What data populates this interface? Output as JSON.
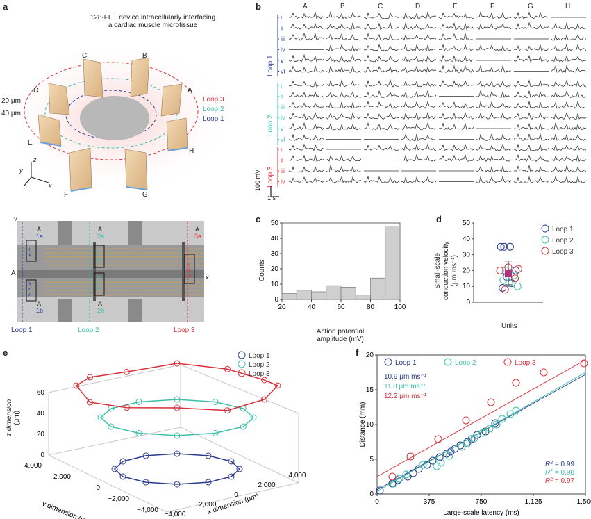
{
  "panel_a": {
    "letter": "a",
    "title_line1": "128-FET device intracellularly interfacing",
    "title_line2": "a cardiac muscle microtissue",
    "electrode_labels": [
      "A",
      "B",
      "C",
      "D",
      "E",
      "F",
      "G",
      "H"
    ],
    "dim_20": "20 μm",
    "dim_40": "40 μm",
    "loops": [
      "Loop 3",
      "Loop 2",
      "Loop 1"
    ],
    "axes": {
      "x": "x",
      "y": "y",
      "z": "z"
    },
    "colors": {
      "loop1": "#2b3a8f",
      "loop2": "#3cbfa8",
      "loop3": "#d8303a"
    }
  },
  "panel_a2": {
    "y_axis": "y",
    "x_axis": "x",
    "a_left": "A",
    "a_labels": [
      "A",
      "A",
      "A",
      "A",
      "A"
    ],
    "tags": [
      "1a",
      "2a",
      "3a",
      "1b",
      "2b"
    ],
    "roman_blue": [
      "i",
      "ii",
      "iii",
      "iv",
      "v",
      "vi"
    ],
    "roman_teal": [
      "i",
      "ii",
      "iii",
      "iv",
      "v",
      "vi"
    ],
    "roman_red": [
      "i",
      "ii",
      "iii",
      "iv"
    ],
    "loop_labels": [
      "Loop 1",
      "Loop 2",
      "Loop 3"
    ]
  },
  "panel_b": {
    "letter": "b",
    "columns": [
      "A",
      "B",
      "C",
      "D",
      "E",
      "F",
      "G",
      "H"
    ],
    "loop1_label": "Loop 1",
    "loop2_label": "Loop 2",
    "loop3_label": "Loop 3",
    "loop1_rows": [
      "i",
      "ii",
      "iii",
      "iv",
      "v",
      "vi"
    ],
    "loop2_rows": [
      "i",
      "ii",
      "iii",
      "iv",
      "v",
      "vi"
    ],
    "loop3_rows": [
      "i",
      "ii",
      "iii",
      "iv"
    ],
    "scale_v": "100 mV",
    "scale_t": "1 s"
  },
  "panel_c": {
    "letter": "c",
    "chart_data": {
      "type": "bar",
      "title": "",
      "xlabel_line1": "Action potential",
      "xlabel_line2": "amplitude (mV)",
      "ylabel": "Counts",
      "bin_edges": [
        20,
        30,
        40,
        50,
        60,
        70,
        80,
        90,
        100
      ],
      "values": [
        4,
        6,
        5,
        9,
        8,
        3,
        14,
        48
      ],
      "xticks": [
        20,
        40,
        60,
        80,
        100
      ],
      "yticks": [
        0,
        10,
        20,
        30,
        40,
        50
      ],
      "ylim": [
        0,
        50
      ],
      "xlim": [
        20,
        100
      ]
    }
  },
  "panel_d": {
    "letter": "d",
    "chart_data": {
      "type": "scatter",
      "ylabel_line1": "Small-scale",
      "ylabel_line2": "conduction velocity",
      "ylabel_line3": "(μm ms⁻¹)",
      "xlabel": "Units",
      "yticks": [
        0,
        10,
        20,
        30,
        40,
        50
      ],
      "ylim": [
        0,
        50
      ],
      "mean": 18,
      "err_low": 11,
      "err_high": 26,
      "legend": [
        {
          "name": "Loop 1",
          "color": "#2b3a8f"
        },
        {
          "name": "Loop 2",
          "color": "#3cbfa8"
        },
        {
          "name": "Loop 3",
          "color": "#d8303a"
        }
      ],
      "points": [
        {
          "series": 0,
          "x": -0.9,
          "y": 35
        },
        {
          "series": 0,
          "x": -0.5,
          "y": 35
        },
        {
          "series": 0,
          "x": 0.2,
          "y": 35
        },
        {
          "series": 0,
          "x": -0.7,
          "y": 9
        },
        {
          "series": 0,
          "x": 0.4,
          "y": 12
        },
        {
          "series": 0,
          "x": -0.2,
          "y": 16
        },
        {
          "series": 0,
          "x": 0.9,
          "y": 20
        },
        {
          "series": 1,
          "x": -0.6,
          "y": 14
        },
        {
          "series": 1,
          "x": 0.1,
          "y": 12
        },
        {
          "series": 1,
          "x": 0.7,
          "y": 17
        },
        {
          "series": 1,
          "x": 1.1,
          "y": 10
        },
        {
          "series": 1,
          "x": -0.3,
          "y": 20
        },
        {
          "series": 2,
          "x": -1.0,
          "y": 20
        },
        {
          "series": 2,
          "x": 0.0,
          "y": 22
        },
        {
          "series": 2,
          "x": 0.8,
          "y": 15
        },
        {
          "series": 2,
          "x": 1.2,
          "y": 21
        },
        {
          "series": 2,
          "x": -0.4,
          "y": 8
        }
      ]
    }
  },
  "panel_e": {
    "letter": "e",
    "z_label": "z dimension",
    "z_unit": "(μm)",
    "y_label": "y dimension (μm)",
    "x_label": "x dimension (μm)",
    "z_ticks": [
      "0",
      "20",
      "40",
      "60"
    ],
    "y_ticks": [
      "4,000",
      "2,000",
      "0",
      "−2,000",
      "−4,000"
    ],
    "x_ticks": [
      "−4,000",
      "−2,000",
      "0",
      "2,000",
      "4,000"
    ],
    "legend": [
      "Loop 1",
      "Loop 2",
      "Loop 3"
    ]
  },
  "panel_f": {
    "letter": "f",
    "chart_data": {
      "type": "scatter",
      "xlabel": "Large-scale latency (ms)",
      "ylabel": "Distance (mm)",
      "xticks": [
        "0",
        "375",
        "750",
        "1,125",
        "1,500"
      ],
      "xtick_vals": [
        0,
        375,
        750,
        1125,
        1500
      ],
      "yticks": [
        "0",
        "5",
        "10",
        "15",
        "20"
      ],
      "ytick_vals": [
        0,
        5,
        10,
        15,
        20
      ],
      "xlim": [
        0,
        1500
      ],
      "ylim": [
        0,
        20
      ],
      "legend": [
        "Loop 1",
        "Loop 2",
        "Loop 3"
      ],
      "velocities": [
        "10.9 μm ms⁻¹",
        "11.8 μm ms⁻¹",
        "12.2 μm ms⁻¹"
      ],
      "r2": [
        "= 0.99",
        "= 0.98",
        "= 0.97"
      ],
      "series": [
        {
          "name": "Loop 1",
          "color": "#2b3a8f",
          "fit": [
            [
              0,
              0.6
            ],
            [
              1500,
              17.2
            ]
          ],
          "x": [
            20,
            110,
            150,
            220,
            260,
            300,
            360,
            400,
            450,
            500,
            530,
            560,
            600,
            650,
            680,
            720,
            780,
            850
          ],
          "y": [
            0.5,
            1.5,
            2,
            2.5,
            3,
            3.6,
            4.2,
            4.8,
            5.3,
            5.8,
            6.1,
            6.5,
            7,
            7.5,
            7.9,
            8.5,
            9,
            10.2
          ]
        },
        {
          "name": "Loop 2",
          "color": "#3cbfa8",
          "fit": [
            [
              0,
              0.4
            ],
            [
              1500,
              17.5
            ]
          ],
          "x": [
            120,
            160,
            210,
            330,
            430,
            460,
            520,
            610,
            650,
            700,
            760,
            810,
            860,
            900,
            960,
            1000
          ],
          "y": [
            1.5,
            2.2,
            2.8,
            4.2,
            4,
            4.5,
            5.5,
            6.8,
            7.3,
            8,
            8.8,
            9.4,
            10,
            10.8,
            11.5,
            12
          ]
        },
        {
          "name": "Loop 3",
          "color": "#d8303a",
          "fit": [
            [
              0,
              2.5
            ],
            [
              1500,
              19.3
            ]
          ],
          "x": [
            110,
            240,
            440,
            640,
            820,
            1000,
            1200,
            1490
          ],
          "y": [
            2.5,
            5.4,
            7.9,
            10.6,
            13.2,
            16,
            17.5,
            18.8
          ]
        }
      ]
    }
  }
}
